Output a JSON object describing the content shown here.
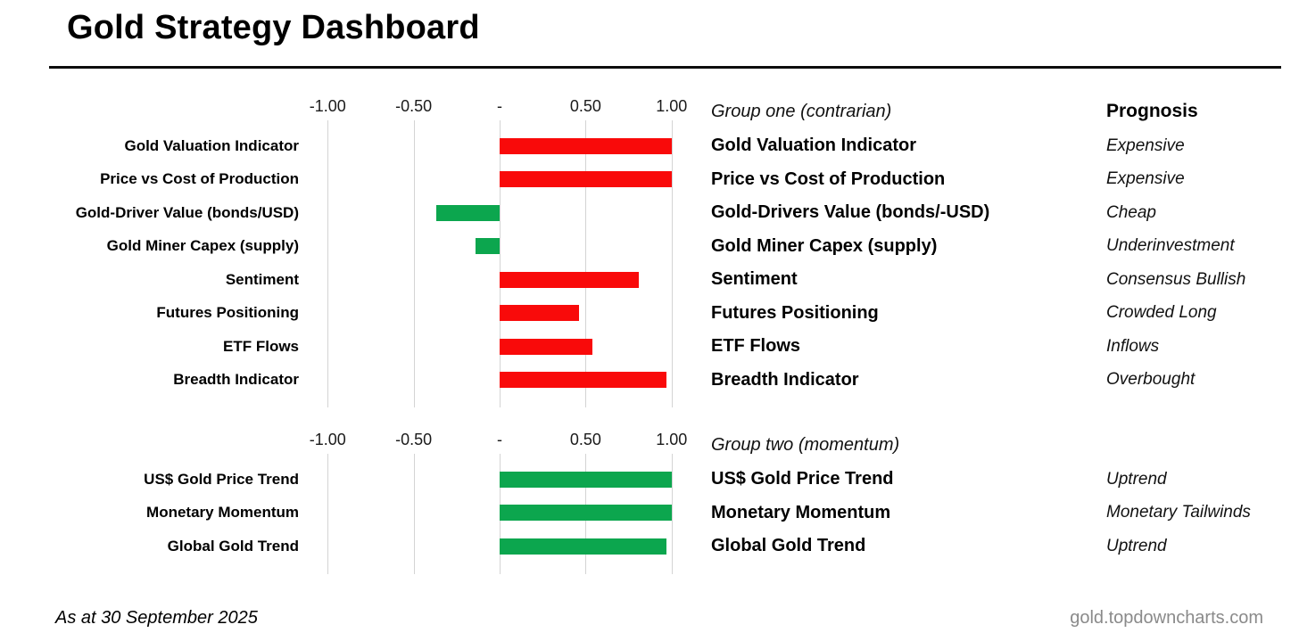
{
  "page": {
    "title": "Gold Strategy Dashboard",
    "footnote": "As at 30 September 2025",
    "source": "gold.topdowncharts.com"
  },
  "colors": {
    "bar_red": "#f90a0a",
    "bar_green": "#0ca64e",
    "gridline": "#d4d4d4",
    "source_text": "#8a8a8a"
  },
  "chart_data": [
    {
      "type": "bar",
      "orientation": "horizontal",
      "group_label": "Group one (contrarian)",
      "prognosis_header": "Prognosis",
      "xlim": [
        -1.0,
        1.0
      ],
      "tick_labels": [
        "-1.00",
        "-0.50",
        "-",
        "0.50",
        "1.00"
      ],
      "tick_values": [
        -1,
        -0.5,
        0,
        0.5,
        1
      ],
      "rows": [
        {
          "label": "Gold Valuation Indicator",
          "name": "Gold Valuation Indicator",
          "value": 1.0,
          "color": "red",
          "prognosis": "Expensive"
        },
        {
          "label": "Price vs Cost of Production",
          "name": "Price vs Cost of Production",
          "value": 1.0,
          "color": "red",
          "prognosis": "Expensive"
        },
        {
          "label": "Gold-Driver Value (bonds/USD)",
          "name": "Gold-Drivers Value (bonds/-USD)",
          "value": -0.37,
          "color": "green",
          "prognosis": "Cheap"
        },
        {
          "label": "Gold Miner Capex (supply)",
          "name": "Gold Miner Capex (supply)",
          "value": -0.14,
          "color": "green",
          "prognosis": "Underinvestment"
        },
        {
          "label": "Sentiment",
          "name": "Sentiment",
          "value": 0.81,
          "color": "red",
          "prognosis": "Consensus Bullish"
        },
        {
          "label": "Futures Positioning",
          "name": "Futures Positioning",
          "value": 0.46,
          "color": "red",
          "prognosis": "Crowded Long"
        },
        {
          "label": "ETF Flows",
          "name": "ETF Flows",
          "value": 0.54,
          "color": "red",
          "prognosis": "Inflows"
        },
        {
          "label": "Breadth Indicator",
          "name": "Breadth Indicator",
          "value": 0.97,
          "color": "red",
          "prognosis": "Overbought"
        }
      ]
    },
    {
      "type": "bar",
      "orientation": "horizontal",
      "group_label": "Group two (momentum)",
      "xlim": [
        -1.0,
        1.0
      ],
      "tick_labels": [
        "-1.00",
        "-0.50",
        "-",
        "0.50",
        "1.00"
      ],
      "tick_values": [
        -1,
        -0.5,
        0,
        0.5,
        1
      ],
      "rows": [
        {
          "label": "US$ Gold Price Trend",
          "name": "US$ Gold Price Trend",
          "value": 1.0,
          "color": "green",
          "prognosis": "Uptrend"
        },
        {
          "label": "Monetary Momentum",
          "name": "Monetary Momentum",
          "value": 1.0,
          "color": "green",
          "prognosis": "Monetary Tailwinds"
        },
        {
          "label": "Global Gold Trend",
          "name": "Global Gold Trend",
          "value": 0.97,
          "color": "green",
          "prognosis": "Uptrend"
        }
      ]
    }
  ]
}
